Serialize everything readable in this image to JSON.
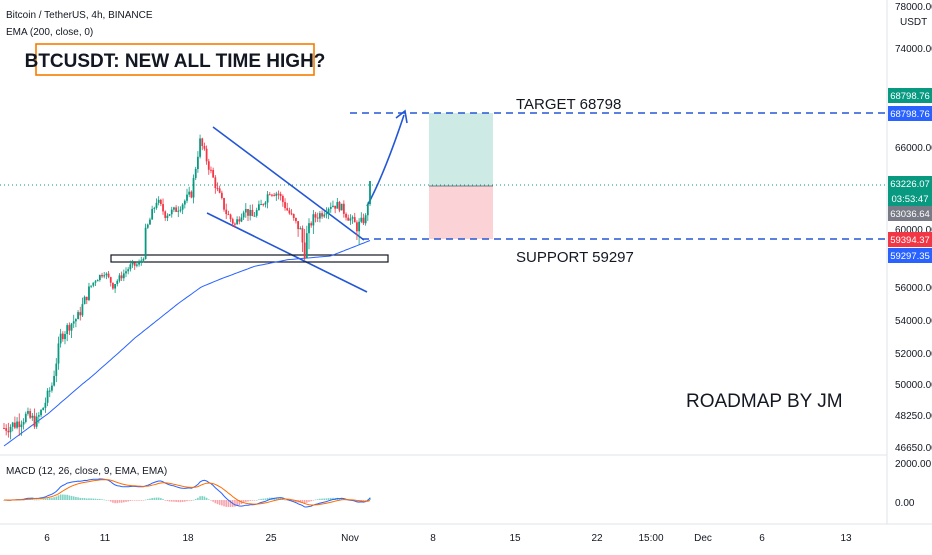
{
  "header": {
    "symbol_line": "Bitcoin / TetherUS, 4h, BINANCE",
    "ema_line": "EMA (200, close, 0)",
    "macd_line": "MACD (12, 26, close, 9, EMA, EMA)"
  },
  "annotations": {
    "headline": "BTCUSDT: NEW ALL TIME HIGH?",
    "target_label": "TARGET  68798",
    "support_label": "SUPPORT 59297",
    "author": "ROADMAP BY JM"
  },
  "price_axis": {
    "currency": "USDT",
    "ticks": [
      "78000.00",
      "74000.00",
      "66000.00",
      "60000.00",
      "56000.00",
      "54000.00",
      "52000.00",
      "50000.00",
      "48250.00",
      "46650.00"
    ],
    "badges": [
      {
        "text": "68798.76",
        "bg": "#089981",
        "fg": "#ffffff"
      },
      {
        "text": "68798.76",
        "bg": "#2962ff",
        "fg": "#ffffff"
      },
      {
        "text": "63226.07",
        "bg": "#089981",
        "fg": "#ffffff"
      },
      {
        "text": "03:53:47",
        "bg": "#089981",
        "fg": "#ffffff"
      },
      {
        "text": "63036.64",
        "bg": "#787b86",
        "fg": "#ffffff"
      },
      {
        "text": "59394.37",
        "bg": "#f23645",
        "fg": "#ffffff"
      },
      {
        "text": "59297.35",
        "bg": "#2962ff",
        "fg": "#ffffff"
      }
    ]
  },
  "macd_axis": {
    "ticks": [
      "2000.00",
      "0.00"
    ]
  },
  "time_axis": {
    "ticks": [
      "6",
      "11",
      "18",
      "25",
      "Nov",
      "8",
      "15",
      "22",
      "15:00",
      "Dec",
      "6",
      "13"
    ]
  },
  "colors": {
    "up": "#089981",
    "down": "#f23645",
    "ema": "#2962ff",
    "macd": "#2962ff",
    "signal": "#ff6d00",
    "drawing": "#2457d6",
    "target_zone": "#cdebe4",
    "stop_zone": "#fbd3d6",
    "headline_border": "#f57c00"
  },
  "chart_data": {
    "type": "candlestick",
    "title": "Bitcoin / TetherUS, 4h, BINANCE",
    "ylim": [
      46000,
      78000
    ],
    "levels": {
      "target": 68798.76,
      "support": 59297.35,
      "last": 63226.07,
      "stop": 59394.37,
      "entry": 63036.64
    },
    "path_anchors": [
      [
        0,
        47600
      ],
      [
        5,
        47800
      ],
      [
        10,
        48200
      ],
      [
        15,
        47900
      ],
      [
        18,
        48700
      ],
      [
        22,
        50000
      ],
      [
        26,
        53000
      ],
      [
        30,
        53700
      ],
      [
        34,
        54200
      ],
      [
        38,
        55500
      ],
      [
        42,
        56800
      ],
      [
        46,
        57600
      ],
      [
        50,
        56200
      ],
      [
        54,
        57200
      ],
      [
        58,
        58200
      ],
      [
        62,
        58400
      ],
      [
        66,
        60200
      ],
      [
        70,
        62100
      ],
      [
        74,
        61100
      ],
      [
        78,
        61300
      ],
      [
        82,
        61900
      ],
      [
        86,
        62600
      ],
      [
        90,
        66500
      ],
      [
        94,
        64600
      ],
      [
        98,
        62800
      ],
      [
        102,
        61200
      ],
      [
        106,
        60300
      ],
      [
        110,
        61500
      ],
      [
        114,
        60900
      ],
      [
        118,
        61700
      ],
      [
        122,
        62800
      ],
      [
        126,
        62600
      ],
      [
        130,
        61400
      ],
      [
        134,
        60400
      ],
      [
        138,
        59400
      ],
      [
        142,
        60800
      ],
      [
        146,
        61200
      ],
      [
        150,
        61800
      ],
      [
        154,
        61700
      ],
      [
        158,
        60900
      ],
      [
        162,
        60200
      ],
      [
        166,
        60800
      ],
      [
        168,
        63200
      ]
    ],
    "ema200_anchors": [
      [
        0,
        46700
      ],
      [
        20,
        48300
      ],
      [
        40,
        50500
      ],
      [
        60,
        52900
      ],
      [
        80,
        55000
      ],
      [
        100,
        56900
      ],
      [
        115,
        58200
      ],
      [
        130,
        58900
      ],
      [
        150,
        59300
      ],
      [
        168,
        59700
      ]
    ]
  }
}
